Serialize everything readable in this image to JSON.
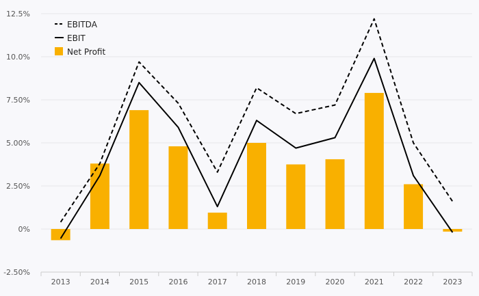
{
  "chart_data": {
    "type": "bar",
    "categories": [
      "2013",
      "2014",
      "2015",
      "2016",
      "2017",
      "2018",
      "2019",
      "2020",
      "2021",
      "2022",
      "2023"
    ],
    "series": [
      {
        "name": "EBITDA",
        "kind": "line",
        "style": "dashed",
        "color": "#000000",
        "values": [
          0.4,
          3.8,
          9.7,
          7.3,
          3.3,
          8.2,
          6.7,
          7.2,
          12.2,
          5.0,
          1.6
        ]
      },
      {
        "name": "EBIT",
        "kind": "line",
        "style": "solid",
        "color": "#000000",
        "values": [
          -0.55,
          3.1,
          8.5,
          5.9,
          1.3,
          6.3,
          4.7,
          5.3,
          9.9,
          3.1,
          -0.2
        ]
      },
      {
        "name": "Net Profit",
        "kind": "bar",
        "color": "#f9b000",
        "values": [
          -0.65,
          3.8,
          6.9,
          4.8,
          0.95,
          5.0,
          3.75,
          4.05,
          7.9,
          2.6,
          -0.15
        ]
      }
    ],
    "y_ticks": [
      "12.5%",
      "10.0%",
      "7.50%",
      "5.00%",
      "2.50%",
      "0%",
      "-2.50%"
    ],
    "y_tick_values": [
      12.5,
      10.0,
      7.5,
      5.0,
      2.5,
      0,
      -2.5
    ],
    "ylim": [
      -2.5,
      12.5
    ],
    "grid": true,
    "legend_position": "top-left"
  }
}
